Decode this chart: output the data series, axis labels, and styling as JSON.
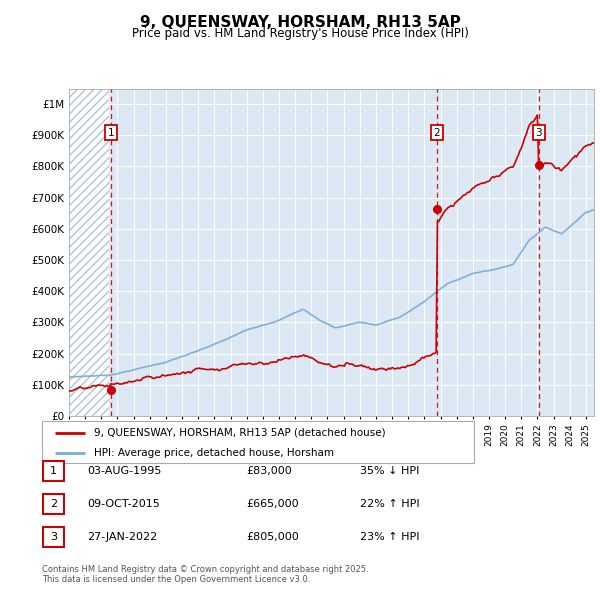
{
  "title": "9, QUEENSWAY, HORSHAM, RH13 5AP",
  "subtitle": "Price paid vs. HM Land Registry's House Price Index (HPI)",
  "ylim": [
    0,
    1050000
  ],
  "yticks": [
    0,
    100000,
    200000,
    300000,
    400000,
    500000,
    600000,
    700000,
    800000,
    900000,
    1000000
  ],
  "ytick_labels": [
    "£0",
    "£100K",
    "£200K",
    "£300K",
    "£400K",
    "£500K",
    "£600K",
    "£700K",
    "£800K",
    "£900K",
    "£1M"
  ],
  "hpi_color": "#7aadd4",
  "price_color": "#cc0000",
  "bg_color": "#dce9f5",
  "grid_color": "#ffffff",
  "transactions": [
    {
      "date_num": 1995.58,
      "price": 83000,
      "label": "1"
    },
    {
      "date_num": 2015.77,
      "price": 665000,
      "label": "2"
    },
    {
      "date_num": 2022.07,
      "price": 805000,
      "label": "3"
    }
  ],
  "legend_entries": [
    "9, QUEENSWAY, HORSHAM, RH13 5AP (detached house)",
    "HPI: Average price, detached house, Horsham"
  ],
  "table_rows": [
    [
      "1",
      "03-AUG-1995",
      "£83,000",
      "35% ↓ HPI"
    ],
    [
      "2",
      "09-OCT-2015",
      "£665,000",
      "22% ↑ HPI"
    ],
    [
      "3",
      "27-JAN-2022",
      "£805,000",
      "23% ↑ HPI"
    ]
  ],
  "footnote": "Contains HM Land Registry data © Crown copyright and database right 2025.\nThis data is licensed under the Open Government Licence v3.0.",
  "xmin": 1993.0,
  "xmax": 2025.5
}
